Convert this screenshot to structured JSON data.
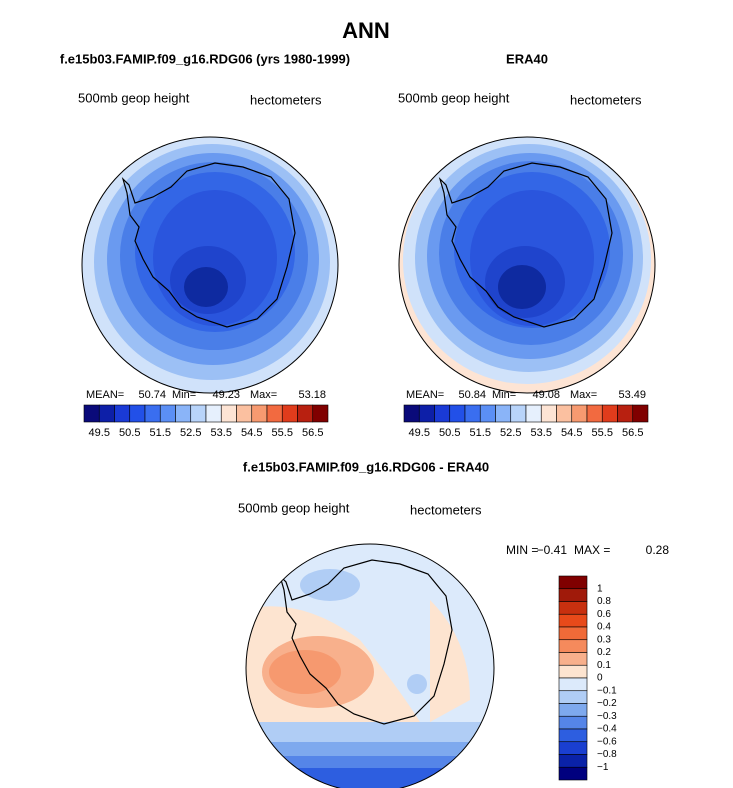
{
  "title": "ANN",
  "panels": [
    {
      "title": "f.e15b03.FAMIP.f09_g16.RDG06 (yrs 1980-1999)",
      "left_label": "500mb geop height",
      "right_label": "hectometers",
      "mean_label": "MEAN=",
      "mean": 50.74,
      "min_label": "Min=",
      "min": 49.23,
      "max_label": "Max=",
      "max": 53.18
    },
    {
      "title": "ERA40",
      "left_label": "500mb geop height",
      "right_label": "hectometers",
      "mean_label": "MEAN=",
      "mean": 50.84,
      "min_label": "Min=",
      "min": 49.08,
      "max_label": "Max=",
      "max": 53.49
    }
  ],
  "colorbar": {
    "ticks": [
      49.5,
      50.5,
      51.5,
      52.5,
      53.5,
      54.5,
      55.5,
      56.5
    ],
    "colors": [
      "#0a0a7a",
      "#0d1fa8",
      "#1a3ad6",
      "#2250e8",
      "#3a6ef0",
      "#5b8ff5",
      "#8ab4f8",
      "#b8d4fa",
      "#e6f0fd",
      "#fde4d4",
      "#fbc0a0",
      "#f79a70",
      "#f26a40",
      "#e03c1c",
      "#b82010",
      "#800000"
    ]
  },
  "difference": {
    "title": "f.e15b03.FAMIP.f09_g16.RDG06 - ERA40",
    "left_label": "500mb geop height",
    "right_label": "hectometers",
    "min_label": "MIN =",
    "min": {
      "value": -0.41,
      "label": "−0.41"
    },
    "max_label": "MAX =",
    "max": 0.28,
    "colorbar": {
      "ticks": [
        1,
        0.8,
        0.6,
        0.4,
        0.3,
        0.2,
        0.1,
        0,
        {
          "value": -0.1,
          "label": "−0.1"
        },
        {
          "value": -0.2,
          "label": "−0.2"
        },
        {
          "value": -0.3,
          "label": "−0.3"
        },
        {
          "value": -0.4,
          "label": "−0.4"
        },
        {
          "value": -0.6,
          "label": "−0.6"
        },
        {
          "value": -0.8,
          "label": "−0.8"
        },
        {
          "value": -1,
          "label": "−1"
        }
      ],
      "colors": [
        "#800000",
        "#a01a0a",
        "#c8300f",
        "#e84a1a",
        "#f06a38",
        "#f58a5c",
        "#f8b08c",
        "#fde4d0",
        "#dceafb",
        "#b0cdf5",
        "#7ea9ee",
        "#5585e8",
        "#2d5ee0",
        "#1a3fd0",
        "#0a22a8",
        "#00007f"
      ]
    }
  }
}
